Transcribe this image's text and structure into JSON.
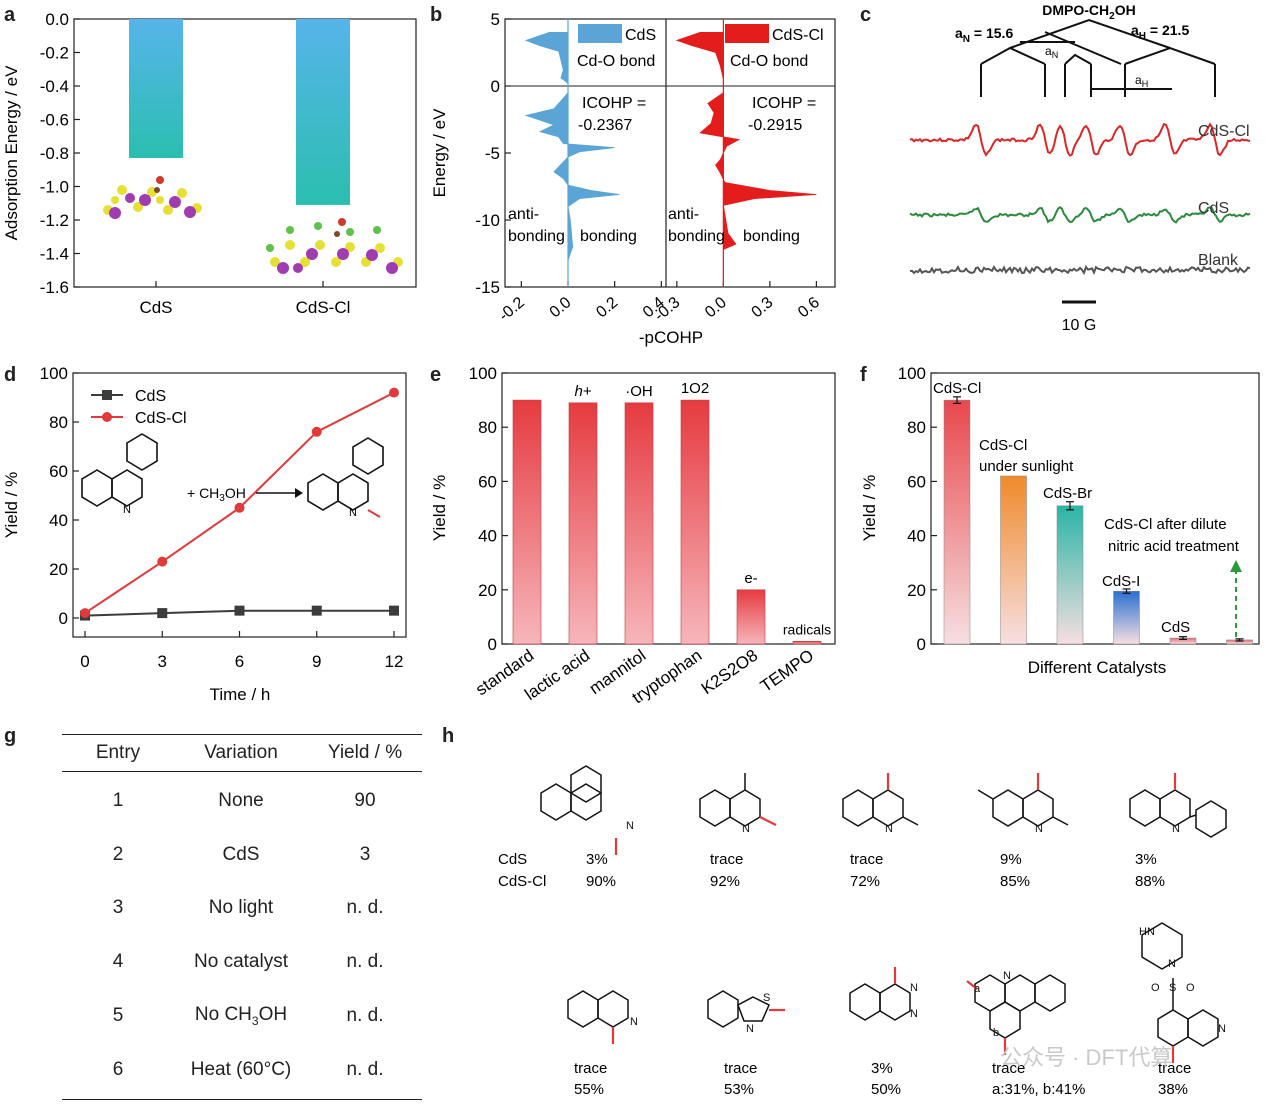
{
  "panels": {
    "a": "a",
    "b": "b",
    "c": "c",
    "d": "d",
    "e": "e",
    "f": "f",
    "g": "g",
    "h": "h"
  },
  "chart_data": [
    {
      "id": "a",
      "type": "bar",
      "categories": [
        "CdS",
        "CdS-Cl"
      ],
      "values": [
        -0.83,
        -1.11
      ],
      "ylabel": "Adsorption Energy / eV",
      "xlabel": "",
      "ylim": [
        -1.6,
        0.0
      ],
      "yticks": [
        "0.0",
        "-0.2",
        "-0.4",
        "-0.6",
        "-0.8",
        "-1.0",
        "-1.2",
        "-1.4",
        "-1.6"
      ],
      "colors": {
        "top": "#56b4ea",
        "bottom": "#2bbfb0"
      }
    },
    {
      "id": "b",
      "type": "area",
      "ylabel": "Energy / eV",
      "xlabel": "-pCOHP",
      "ylim": [
        -15,
        5
      ],
      "yticks": [
        "5",
        "0",
        "-5",
        "-10",
        "-15"
      ],
      "left_xticks": [
        "-0.2",
        "0.0",
        "0.2",
        "0.4"
      ],
      "right_xticks": [
        "-0.3",
        "0.0",
        "0.3",
        "0.6"
      ],
      "series": [
        {
          "name": "CdS",
          "subtitle": "Cd-O bond",
          "icohp_label": "ICOHP =",
          "icohp": "-0.2367",
          "color": "#5aa5d6",
          "profile": [
            [
              4.0,
              -0.08
            ],
            [
              3.4,
              -0.18
            ],
            [
              3.0,
              -0.12
            ],
            [
              2.6,
              -0.04
            ],
            [
              1.2,
              -0.02
            ],
            [
              0.6,
              -0.03
            ],
            [
              0.2,
              0
            ],
            [
              -0.5,
              0
            ],
            [
              -1.7,
              -0.06
            ],
            [
              -2.2,
              -0.18
            ],
            [
              -2.9,
              -0.06
            ],
            [
              -3.4,
              -0.12
            ],
            [
              -3.8,
              -0.04
            ],
            [
              -4.3,
              -0.02
            ],
            [
              -4.6,
              0.2
            ],
            [
              -4.9,
              0.05
            ],
            [
              -5.3,
              0
            ],
            [
              -6.4,
              -0.06
            ],
            [
              -6.9,
              -0.02
            ],
            [
              -7.4,
              0
            ],
            [
              -7.8,
              0.1
            ],
            [
              -8.1,
              0.22
            ],
            [
              -8.4,
              0.05
            ],
            [
              -9.0,
              0
            ],
            [
              -10.0,
              0.01
            ],
            [
              -12.0,
              0.02
            ],
            [
              -13.0,
              0
            ]
          ]
        },
        {
          "name": "CdS-Cl",
          "subtitle": "Cd-O bond",
          "icohp_label": "ICOHP =",
          "icohp": "-0.2915",
          "color": "#e51c1c",
          "profile": [
            [
              4.0,
              -0.15
            ],
            [
              3.4,
              -0.3
            ],
            [
              3.0,
              -0.2
            ],
            [
              2.5,
              -0.05
            ],
            [
              1.5,
              -0.02
            ],
            [
              0.5,
              0
            ],
            [
              -0.5,
              0
            ],
            [
              -1.3,
              -0.1
            ],
            [
              -2.0,
              -0.06
            ],
            [
              -2.8,
              -0.08
            ],
            [
              -3.5,
              -0.15
            ],
            [
              -4.0,
              0.1
            ],
            [
              -4.5,
              0.02
            ],
            [
              -5.5,
              -0.02
            ],
            [
              -5.9,
              -0.05
            ],
            [
              -6.5,
              -0.02
            ],
            [
              -7.2,
              0.01
            ],
            [
              -7.8,
              0.3
            ],
            [
              -8.1,
              0.6
            ],
            [
              -8.4,
              0.2
            ],
            [
              -8.9,
              0
            ],
            [
              -11.0,
              0.03
            ],
            [
              -11.8,
              0.08
            ],
            [
              -12.2,
              0
            ],
            [
              -15,
              0
            ]
          ]
        }
      ],
      "annotations": [
        {
          "anti": "anti-",
          "anti2": "bonding",
          "bond": "bonding"
        },
        {
          "anti": "anti-",
          "anti2": "bonding",
          "bond": "bonding"
        }
      ]
    },
    {
      "id": "c",
      "type": "line",
      "title": "DMPO-CH2OH",
      "aN": "aN = 15.6",
      "aH": "aH = 21.5",
      "aN_short": "aN",
      "aH_short": "aH",
      "series": [
        {
          "name": "CdS-Cl",
          "color": "#d92626",
          "amplitude": 1.0
        },
        {
          "name": "CdS",
          "color": "#2b8a3e",
          "amplitude": 0.45
        },
        {
          "name": "Blank",
          "color": "#555555",
          "amplitude": 0
        }
      ],
      "scalebar": "10 G"
    },
    {
      "id": "d",
      "type": "line",
      "xlabel": "Time / h",
      "ylabel": "Yield / %",
      "x": [
        0,
        3,
        6,
        9,
        12
      ],
      "ylim": [
        0,
        100
      ],
      "xlim": [
        0,
        12
      ],
      "yticks": [
        "0",
        "20",
        "40",
        "60",
        "80",
        "100"
      ],
      "xticks": [
        "0",
        "3",
        "6",
        "9",
        "12"
      ],
      "series": [
        {
          "name": "CdS",
          "values": [
            1,
            2,
            3,
            3,
            3
          ],
          "color": "#3c3c3c",
          "marker": "square"
        },
        {
          "name": "CdS-Cl",
          "values": [
            2,
            23,
            45,
            76,
            92
          ],
          "color": "#e03a3a",
          "marker": "circle"
        }
      ],
      "reagent": "+ CH3OH"
    },
    {
      "id": "e",
      "type": "bar",
      "ylabel": "Yield / %",
      "categories": [
        "standard",
        "lactic acid",
        "mannitol",
        "tryptophan",
        "K2S2O8",
        "TEMPO"
      ],
      "values": [
        90,
        89,
        89,
        90,
        20,
        1
      ],
      "labels": [
        "",
        "h+",
        "·OH",
        "1O2",
        "e-",
        "radicals"
      ],
      "ylim": [
        0,
        100
      ],
      "yticks": [
        "0",
        "20",
        "40",
        "60",
        "80",
        "100"
      ]
    },
    {
      "id": "f",
      "type": "bar",
      "xlabel": "Different Catalysts",
      "ylabel": "Yield / %",
      "categories": [
        "CdS-Cl",
        "CdS-Cl under sunlight",
        "CdS-Br",
        "CdS-I",
        "CdS",
        "CdS-Cl after dilute nitric acid treatment"
      ],
      "values": [
        90,
        62,
        51,
        19.5,
        2.2,
        1.5
      ],
      "errors": [
        1.2,
        0,
        1.5,
        0.8,
        0.5,
        0.4
      ],
      "colors": [
        "#e8474c",
        "#f08a2a",
        "#2ab5a6",
        "#2a6fd0",
        "#e06a75",
        "#e06a75"
      ],
      "ylim": [
        0,
        100
      ],
      "yticks": [
        "0",
        "20",
        "40",
        "60",
        "80",
        "100"
      ]
    }
  ],
  "labels_f": {
    "l1": "CdS-Cl",
    "l2a": "CdS-Cl",
    "l2b": "under sunlight",
    "l3": "CdS-Br",
    "l4": "CdS-I",
    "l5": "CdS",
    "l6a": "CdS-Cl after dilute",
    "l6b": "nitric acid treatment"
  },
  "table_g": {
    "headers": [
      "Entry",
      "Variation",
      "Yield / %"
    ],
    "rows": [
      [
        "1",
        "None",
        "90"
      ],
      [
        "2",
        "CdS",
        "3"
      ],
      [
        "3",
        "No light",
        "n. d."
      ],
      [
        "4",
        "No catalyst",
        "n. d."
      ],
      [
        "5",
        "No CH3OH",
        "n. d."
      ],
      [
        "6",
        "Heat (60°C)",
        "n. d."
      ]
    ]
  },
  "scope_h": {
    "row_labels": [
      "CdS",
      "CdS-Cl"
    ],
    "row1": [
      [
        "3%",
        "90%"
      ],
      [
        "trace",
        "92%"
      ],
      [
        "trace",
        "72%"
      ],
      [
        "9%",
        "85%"
      ],
      [
        "3%",
        "88%"
      ]
    ],
    "row2": [
      [
        "trace",
        "55%"
      ],
      [
        "trace",
        "53%"
      ],
      [
        "3%",
        "50%"
      ],
      [
        "trace",
        "a:31%, b:41%"
      ],
      [
        "trace",
        "38%"
      ]
    ],
    "atoms": {
      "N": "N",
      "S": "S",
      "O": "O",
      "HN": "HN",
      "a": "a",
      "b": "b"
    }
  },
  "watermark": "公众号 · DFT代算"
}
